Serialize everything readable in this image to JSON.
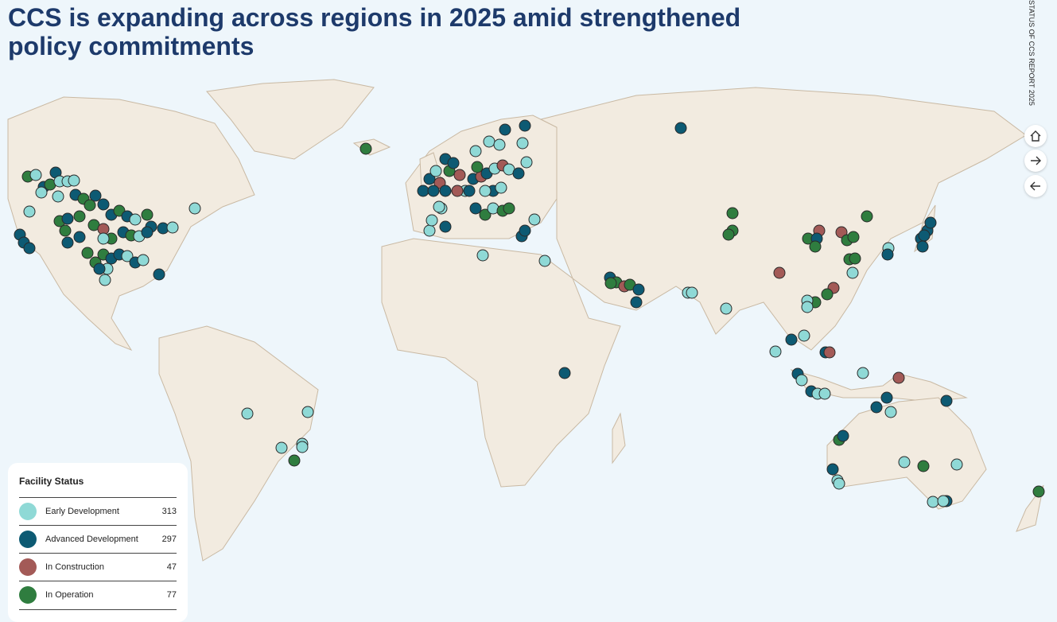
{
  "title": "CCS is expanding across regions in 2025 amid strengthened policy commitments",
  "side_label": "STATUS OF CCS REPORT 2025",
  "legend": {
    "title": "Facility Status",
    "items": [
      {
        "label": "Early Development",
        "count": 313,
        "color": "#8fd9d6"
      },
      {
        "label": "Advanced Development",
        "count": 297,
        "color": "#0d5a73"
      },
      {
        "label": "In Construction",
        "count": 47,
        "color": "#a35a57"
      },
      {
        "label": "In Operation",
        "count": 77,
        "color": "#2f7d3f"
      }
    ]
  }
}
